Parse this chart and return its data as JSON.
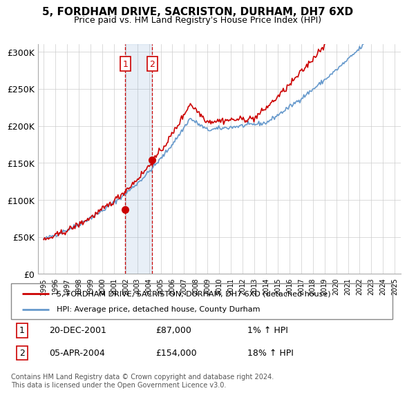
{
  "title": "5, FORDHAM DRIVE, SACRISTON, DURHAM, DH7 6XD",
  "subtitle": "Price paid vs. HM Land Registry's House Price Index (HPI)",
  "legend_line1": "5, FORDHAM DRIVE, SACRISTON, DURHAM, DH7 6XD (detached house)",
  "legend_line2": "HPI: Average price, detached house, County Durham",
  "transaction1_label": "1",
  "transaction1_date": "20-DEC-2001",
  "transaction1_price": "£87,000",
  "transaction1_hpi": "1% ↑ HPI",
  "transaction1_date_num": 2001.97,
  "transaction1_price_val": 87000,
  "transaction2_label": "2",
  "transaction2_date": "05-APR-2004",
  "transaction2_price": "£154,000",
  "transaction2_hpi": "18% ↑ HPI",
  "transaction2_date_num": 2004.27,
  "transaction2_price_val": 154000,
  "hpi_color": "#6699cc",
  "price_color": "#cc0000",
  "background_color": "#ffffff",
  "plot_bg_color": "#ffffff",
  "grid_color": "#cccccc",
  "footnote": "Contains HM Land Registry data © Crown copyright and database right 2024.\nThis data is licensed under the Open Government Licence v3.0.",
  "ylim": [
    0,
    310000
  ],
  "yticks": [
    0,
    50000,
    100000,
    150000,
    200000,
    250000,
    300000
  ],
  "xmin": 1994.5,
  "xmax": 2025.5
}
